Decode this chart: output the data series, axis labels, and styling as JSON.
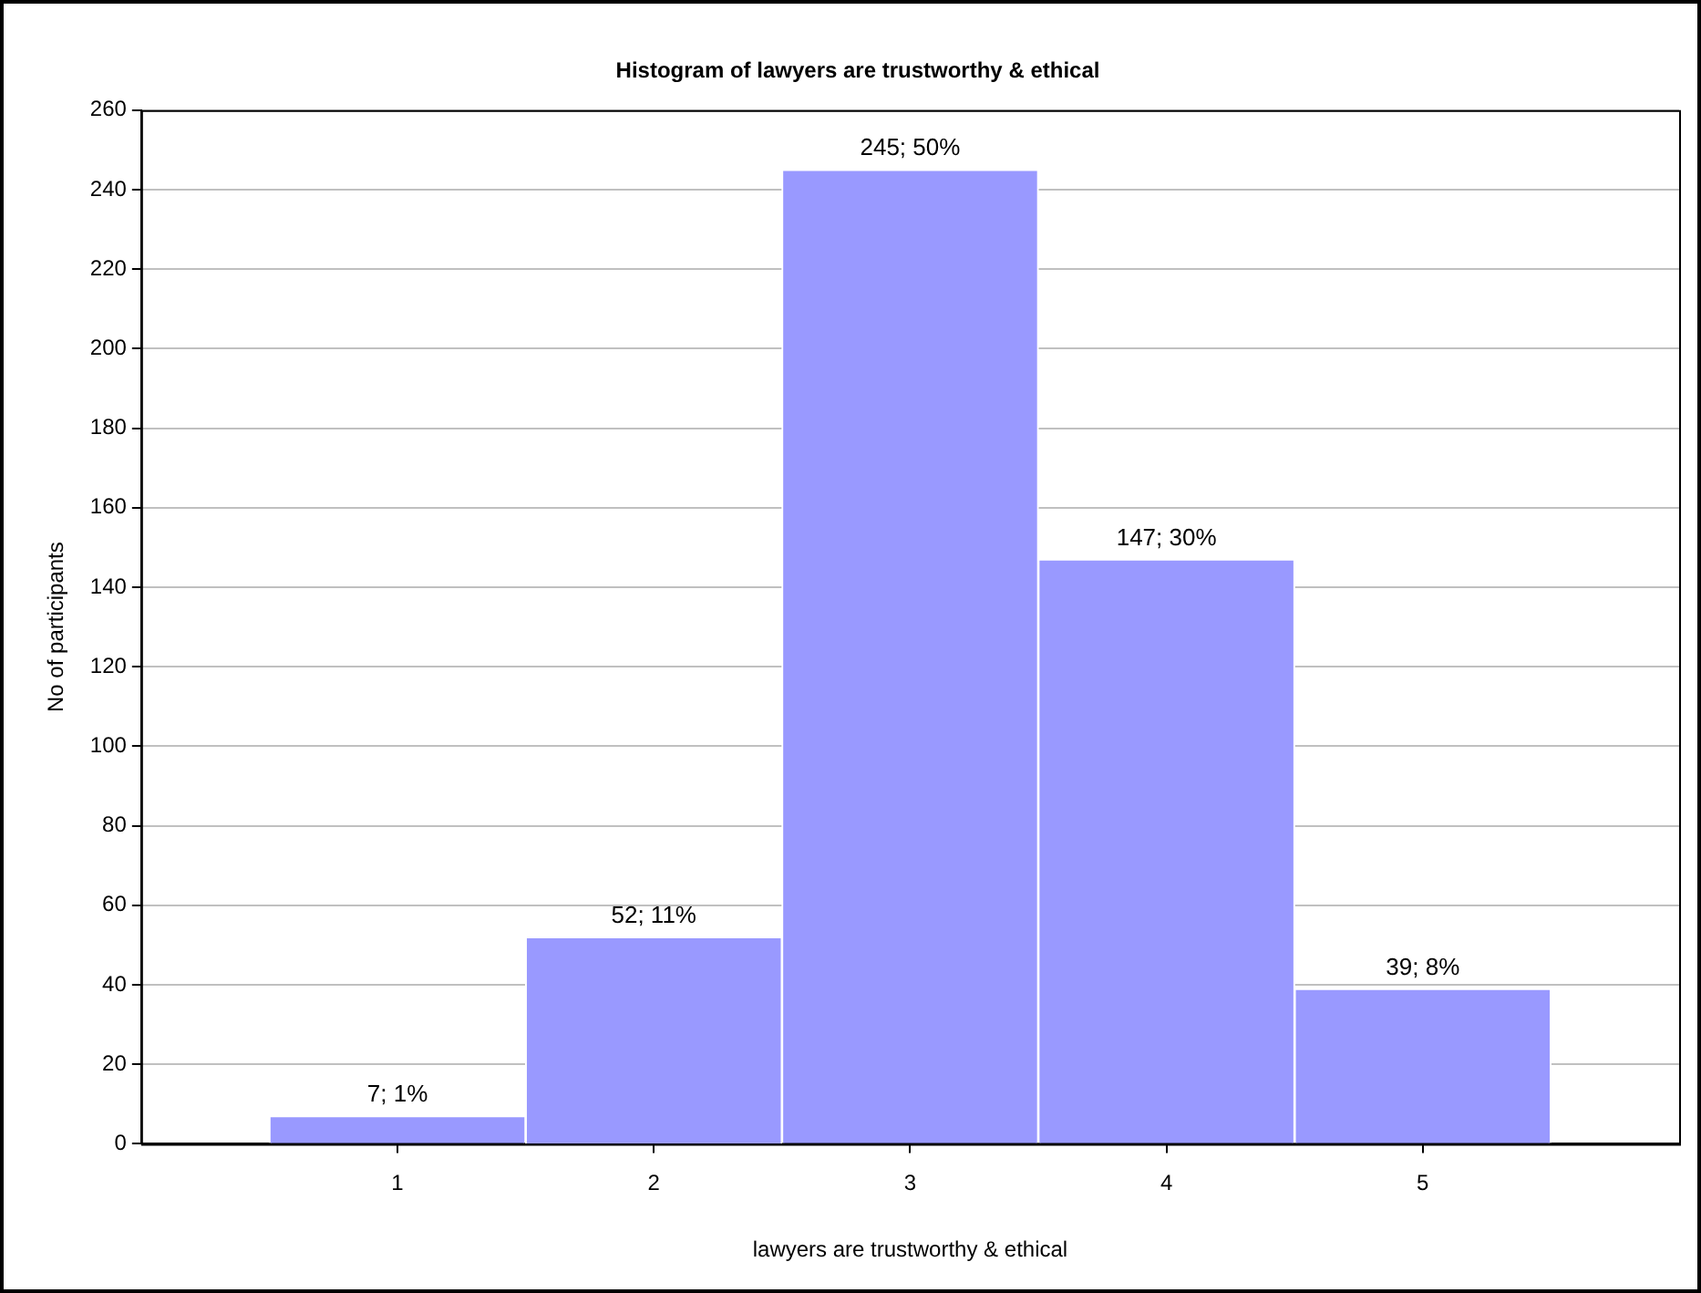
{
  "chart_data": {
    "type": "histogram",
    "title": "Histogram of lawyers are trustworthy & ethical",
    "xlabel": "lawyers are trustworthy & ethical",
    "ylabel": "No of participants",
    "bins": [
      0.5,
      1.5,
      2.5,
      3.5,
      4.5,
      5.5
    ],
    "values": [
      7,
      52,
      245,
      147,
      39
    ],
    "value_labels": [
      "7; 1%",
      "52; 11%",
      "245; 50%",
      "147; 30%",
      "39; 8%"
    ],
    "color": "#9999ff",
    "xlim": [
      0,
      6
    ],
    "xticks": [
      1,
      2,
      3,
      4,
      5
    ],
    "ylim": [
      0,
      260
    ],
    "yticks": [
      0,
      20,
      40,
      60,
      80,
      100,
      120,
      140,
      160,
      180,
      200,
      220,
      240,
      260
    ],
    "grid": "y",
    "legend": false
  }
}
